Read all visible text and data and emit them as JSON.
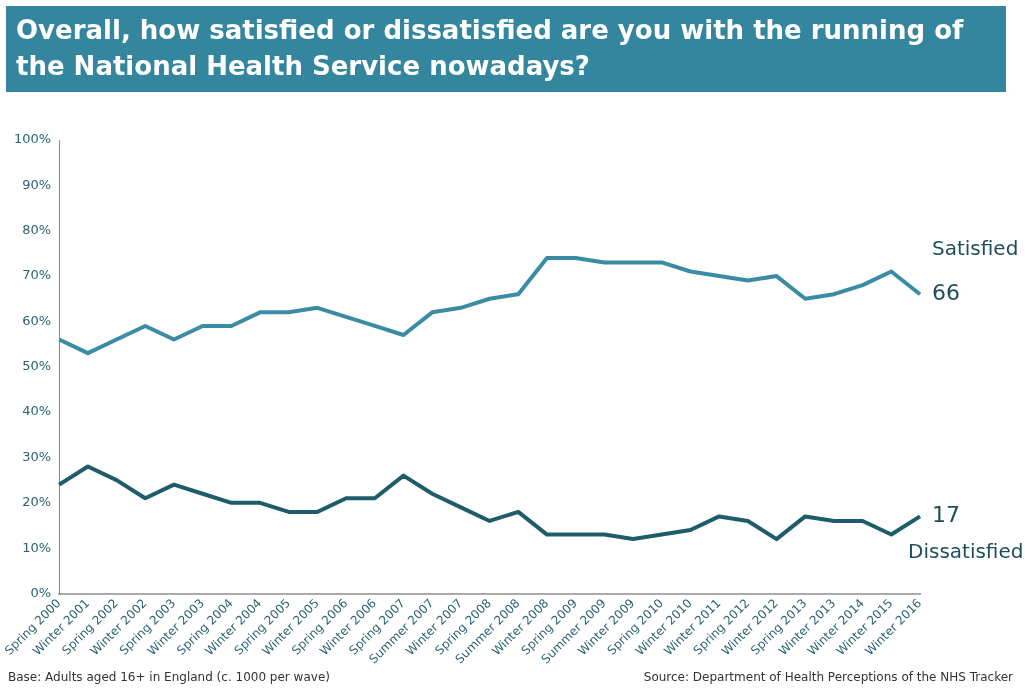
{
  "chart_data": {
    "type": "line",
    "title": "Overall, how satisfied or dissatisfied are you with the running of the National Health Service nowadays?",
    "categories": [
      "Spring 2000",
      "Winter 2001",
      "Spring 2002",
      "Winter 2002",
      "Spring 2003",
      "Winter 2003",
      "Spring 2004",
      "Winter 2004",
      "Spring 2005",
      "Winter 2005",
      "Spring 2006",
      "Winter 2006",
      "Spring 2007",
      "Summer 2007",
      "Winter 2007",
      "Spring 2008",
      "Summer 2008",
      "Winter 2008",
      "Spring 2009",
      "Summer 2009",
      "Winter 2009",
      "Spring 2010",
      "Winter 2010",
      "Winter 2011",
      "Spring 2012",
      "Winter 2012",
      "Spring 2013",
      "Winter 2013",
      "Winter 2014",
      "Winter 2015",
      "Winter 2016"
    ],
    "series": [
      {
        "name": "Satisfied",
        "color": "#3a8ca4",
        "values": [
          56,
          53,
          56,
          59,
          56,
          59,
          59,
          62,
          62,
          63,
          61,
          59,
          57,
          62,
          63,
          65,
          66,
          74,
          74,
          73,
          73,
          73,
          71,
          70,
          69,
          70,
          65,
          66,
          68,
          71,
          66
        ],
        "value_labels": [
          null,
          null,
          null,
          null,
          null,
          null,
          null,
          null,
          null,
          null,
          null,
          null,
          null,
          null,
          null,
          null,
          null,
          null,
          null,
          null,
          null,
          null,
          null,
          null,
          null,
          null,
          null,
          null,
          null,
          null,
          "66"
        ]
      },
      {
        "name": "Dissatisfied",
        "color": "#1f5c6b",
        "values": [
          24,
          28,
          25,
          21,
          24,
          22,
          20,
          20,
          18,
          18,
          21,
          21,
          26,
          22,
          19,
          16,
          18,
          13,
          13,
          13,
          12,
          13,
          14,
          17,
          16,
          12,
          17,
          16,
          16,
          13,
          17
        ],
        "value_labels": [
          null,
          null,
          null,
          null,
          null,
          null,
          null,
          null,
          null,
          null,
          null,
          null,
          null,
          null,
          null,
          null,
          null,
          null,
          null,
          null,
          null,
          null,
          null,
          null,
          null,
          null,
          null,
          null,
          null,
          null,
          "17"
        ]
      }
    ],
    "ylim": [
      0,
      100
    ],
    "yticks": [
      {
        "value": 0,
        "label": "0%"
      },
      {
        "value": 10,
        "label": "10%"
      },
      {
        "value": 20,
        "label": "20%"
      },
      {
        "value": 30,
        "label": "30%"
      },
      {
        "value": 40,
        "label": "40%"
      },
      {
        "value": 50,
        "label": "50%"
      },
      {
        "value": 60,
        "label": "60%"
      },
      {
        "value": 70,
        "label": "70%"
      },
      {
        "value": 80,
        "label": "80%"
      },
      {
        "value": 90,
        "label": "90%"
      },
      {
        "value": 100,
        "label": "100%"
      }
    ],
    "grid": false,
    "legend": false,
    "marker": "none",
    "line_style": "solid",
    "annotations": [
      "Base: Adults aged 16+ in England (c. 1000 per wave)",
      "Source: Department of Health Perceptions of the NHS Tracker"
    ]
  }
}
